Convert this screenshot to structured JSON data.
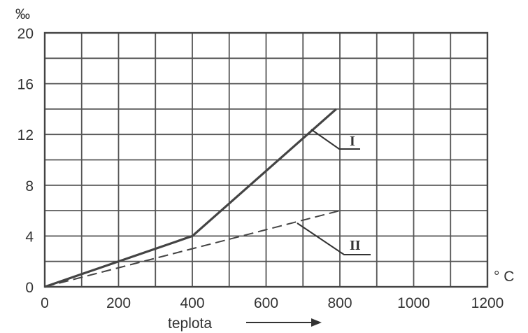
{
  "chart_data": {
    "type": "line",
    "title": "",
    "xlabel": "teplota",
    "ylabel": "‰",
    "x_unit": "° C",
    "xlim": [
      0,
      1200
    ],
    "ylim": [
      0,
      20
    ],
    "x_ticks": [
      0,
      200,
      400,
      600,
      800,
      1000,
      1200
    ],
    "y_ticks": [
      0,
      4,
      8,
      12,
      16,
      20
    ],
    "y_tick_labels": [
      "0",
      "4",
      "8",
      "12",
      "16",
      "20"
    ],
    "x_grid_step": 100,
    "y_grid_step": 2,
    "grid": true,
    "series": [
      {
        "name": "I",
        "style": "solid",
        "x": [
          0,
          400,
          790
        ],
        "y": [
          0,
          4,
          14
        ]
      },
      {
        "name": "II",
        "style": "dashed",
        "x": [
          0,
          800
        ],
        "y": [
          0,
          6
        ]
      }
    ],
    "colors": {
      "line": "#444444",
      "grid": "#555555",
      "text": "#333333"
    }
  }
}
